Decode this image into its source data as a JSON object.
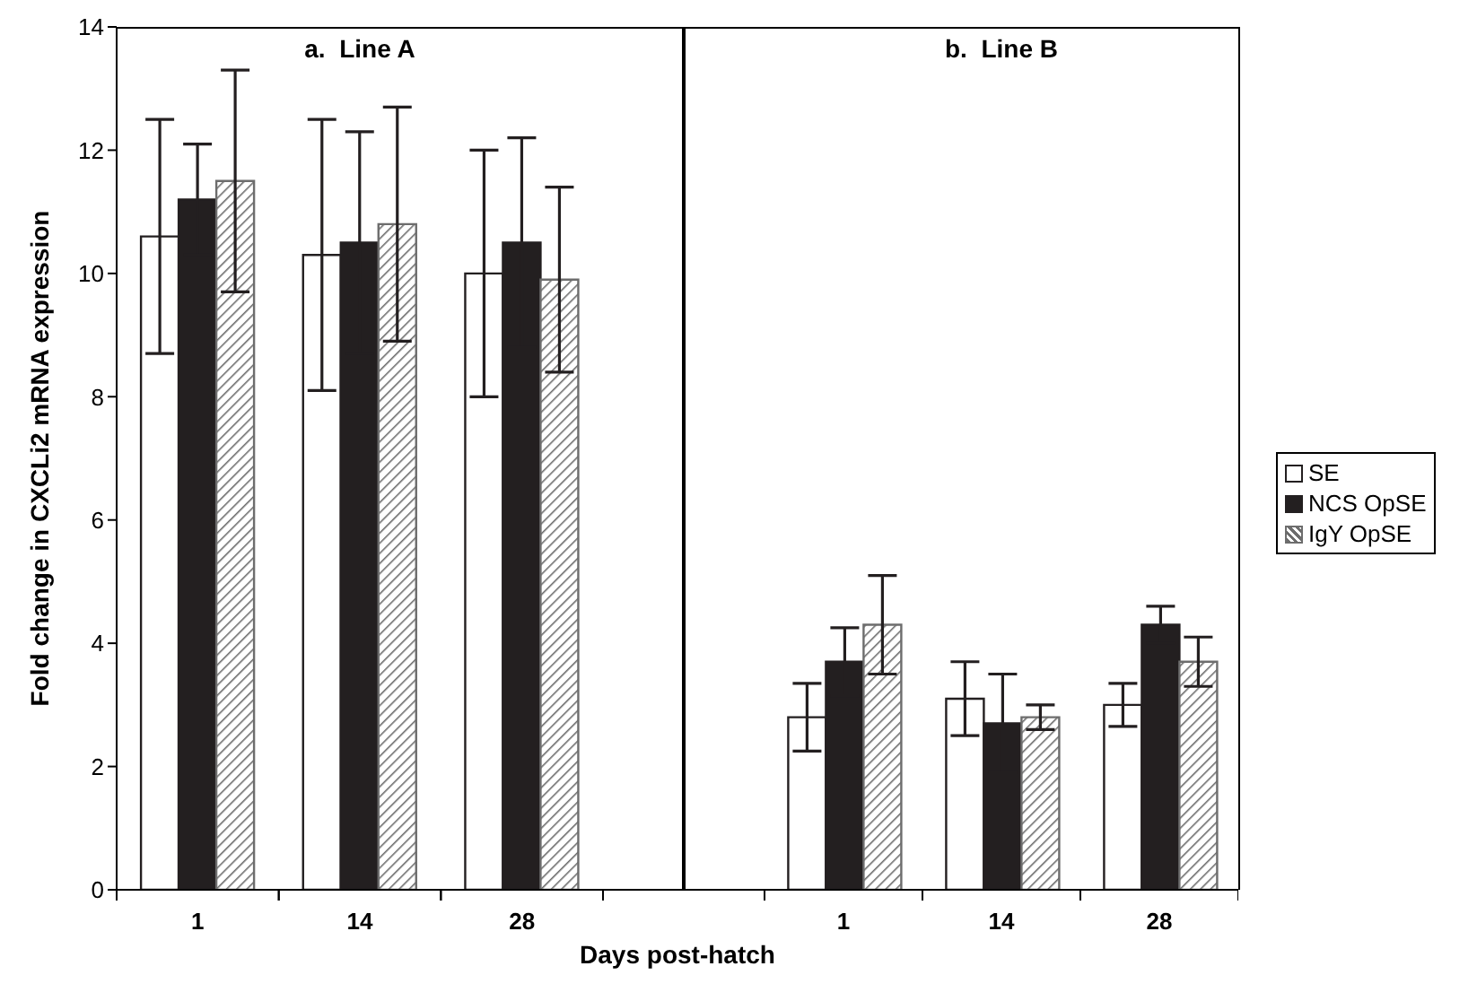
{
  "chart_data": [
    {
      "type": "bar",
      "title": "a.  Line A",
      "xlabel": "Days post-hatch",
      "ylabel": "Fold change in CXCLi2 mRNA expression",
      "categories": [
        "1",
        "14",
        "28"
      ],
      "series": [
        {
          "name": "SE",
          "color": "#ffffff",
          "values": [
            10.6,
            10.3,
            10.0
          ],
          "errors": [
            1.9,
            2.2,
            2.0
          ]
        },
        {
          "name": "NCS OpSE",
          "color": "#231f20",
          "values": [
            11.2,
            10.5,
            10.5
          ],
          "errors": [
            0.9,
            1.8,
            1.7
          ]
        },
        {
          "name": "IgY OpSE",
          "color": "#6d6d6d",
          "values": [
            11.5,
            10.8,
            9.9
          ],
          "errors": [
            1.8,
            1.9,
            1.5
          ]
        }
      ],
      "ylim": [
        0,
        14
      ],
      "yticks": [
        0,
        2,
        4,
        6,
        8,
        10,
        12,
        14
      ],
      "grid": false,
      "legend": "right"
    },
    {
      "type": "bar",
      "title": "b.  Line B",
      "categories": [
        "1",
        "14",
        "28"
      ],
      "series": [
        {
          "color": "#ffffff",
          "values": [
            2.8,
            3.1,
            3.0
          ],
          "errors": [
            0.55,
            0.6,
            0.35
          ]
        },
        {
          "color": "#231f20",
          "values": [
            3.7,
            2.7,
            4.3
          ],
          "errors": [
            0.55,
            0.8,
            0.3
          ]
        },
        {
          "color": "#6d6d6d",
          "values": [
            4.3,
            2.8,
            3.7
          ],
          "errors": [
            0.8,
            0.2,
            0.4
          ]
        }
      ],
      "ylim": [
        0,
        14
      ],
      "yticks": [
        0,
        2,
        4,
        6,
        8,
        10,
        12,
        14
      ],
      "grid": false,
      "tick_labels": "x"
    }
  ]
}
